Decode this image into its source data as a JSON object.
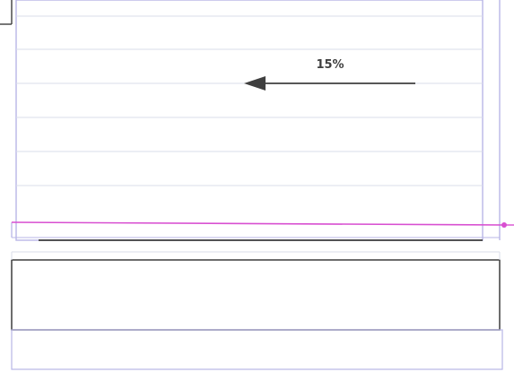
{
  "annotation": {
    "value_text": "15%",
    "arrow_direction": "left"
  },
  "colors": {
    "page_bg": "#ffffff",
    "rule_light": "#d9dde8",
    "frame_blue": "#b8b6e7",
    "dark_line": "#3d3d3d",
    "magenta_line": "#d84fd1",
    "text": "#3f3f3f"
  }
}
